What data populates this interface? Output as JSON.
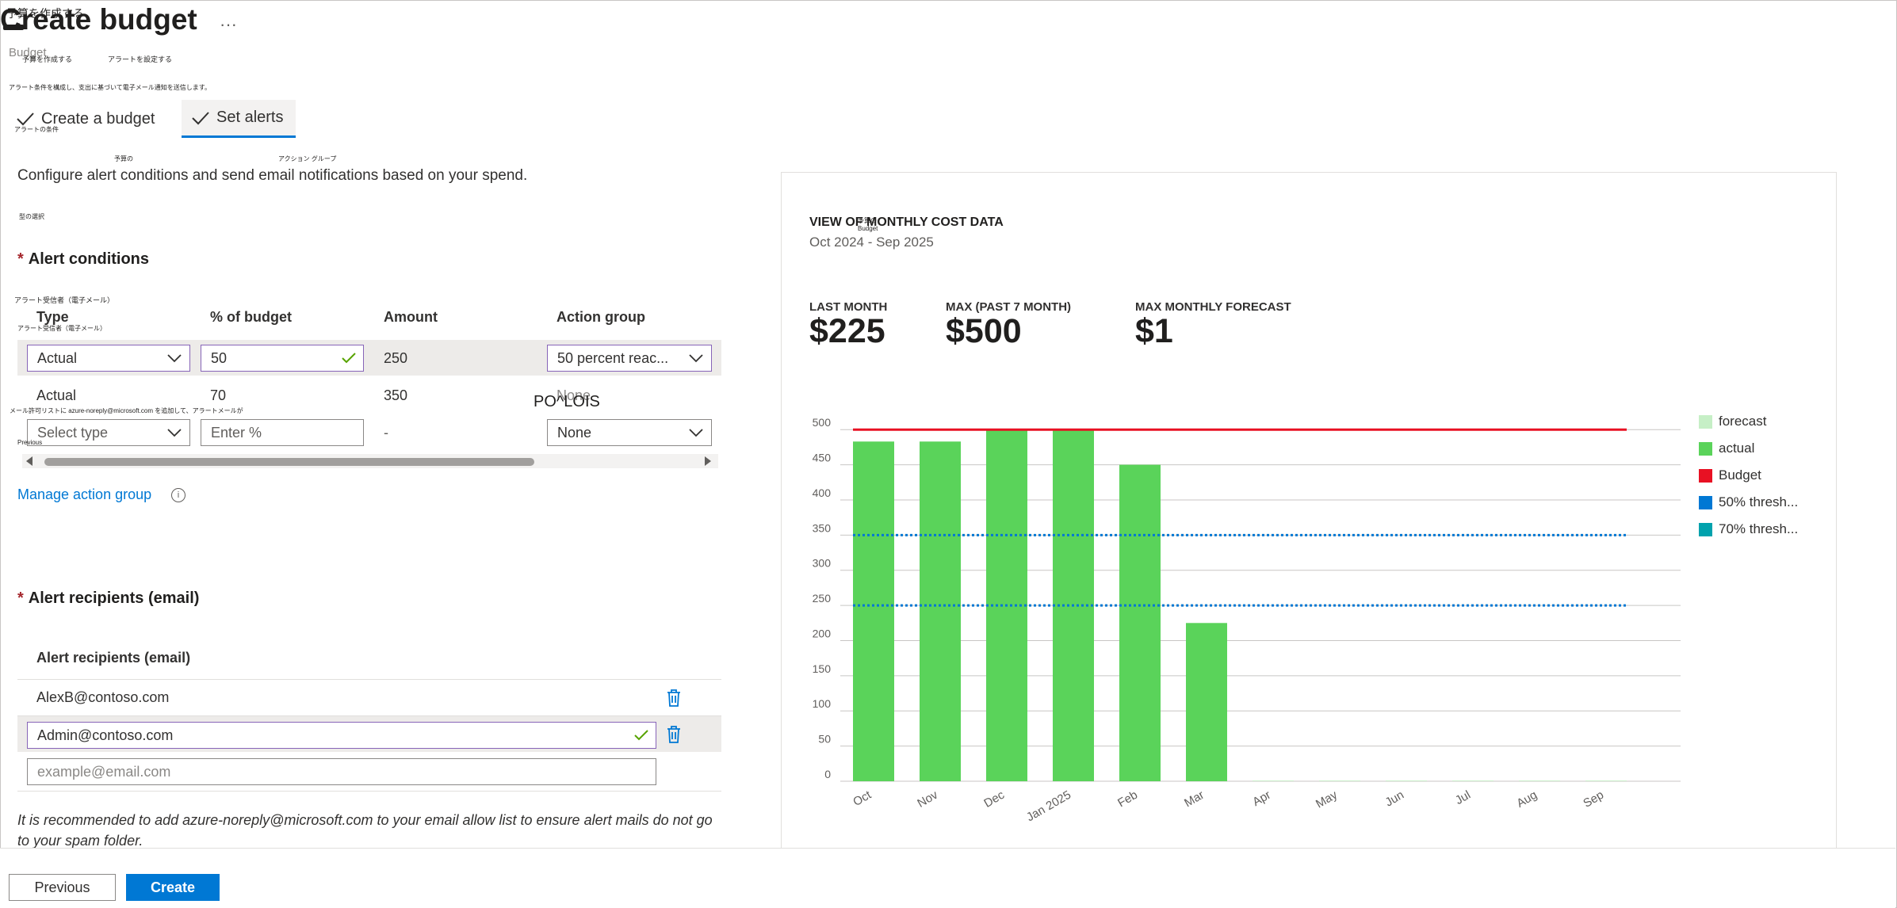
{
  "page": {
    "title": "Create budget",
    "title_overlay_jp": "予算を作成する",
    "ellipsis": "···",
    "breadcrumb_faded": "Budget",
    "tab_labels_jp": [
      "予算を作成する",
      "アラートを設定する"
    ],
    "desc_jp": "アラート条件を構成し、支出に基づいて電子メール通知を送信します。",
    "alert_conditions_jp": "アラートの条件",
    "col_jp": [
      "予算の",
      "アクション グループ"
    ],
    "type_select_jp": "型の選択",
    "recipients_jp": "アラート受信者（電子メール）",
    "recipients_header_jp": "アラート受信者（電子メール）",
    "allowlist_jp": "メール許可リストに azure-noreply@microsoft.com を追加して、アラートメールが",
    "prev_jp": "Previous"
  },
  "tabs": [
    {
      "label": "Create a budget",
      "done": true
    },
    {
      "label": "Set alerts",
      "done": true,
      "active": true
    }
  ],
  "description": "Configure alert conditions and send email notifications based on your spend.",
  "alert_conditions": {
    "heading": "Alert conditions",
    "required_mark": "*",
    "columns": [
      "Type",
      "% of budget",
      "Amount",
      "Action group"
    ],
    "rows": [
      {
        "type": "Actual",
        "percent": "50",
        "amount": "250",
        "action_group": "50 percent reac..."
      },
      {
        "type": "Actual",
        "percent": "70",
        "amount": "350",
        "action_group": "None"
      },
      {
        "type": "Select type",
        "percent": "Enter %",
        "amount": "-",
        "action_group": "None"
      }
    ],
    "overlay_text": "PO^LOIS",
    "manage_link": "Manage action group",
    "info_icon": "i"
  },
  "alert_recipients": {
    "heading": "Alert recipients (email)",
    "required_mark": "*",
    "column": "Alert recipients (email)",
    "emails": [
      "AlexB@contoso.com",
      "Admin@contoso.com"
    ],
    "placeholder": "example@email.com",
    "note": "It is recommended to add azure-noreply@microsoft.com to your email allow list to ensure alert mails do not go to your spam folder."
  },
  "footer": {
    "previous": "Previous",
    "create": "Create"
  },
  "panel": {
    "title": "VIEW OF MONTHLY COST DATA",
    "title_overlay": "予算の\nBudget",
    "subtitle": "Oct 2024 - Sep 2025",
    "kpis": [
      {
        "label": "LAST MONTH",
        "value": "$225"
      },
      {
        "label": "MAX (PAST 7 MONTH)",
        "value": "$500"
      },
      {
        "label": "MAX MONTHLY FORECAST",
        "value": "$1"
      }
    ]
  },
  "colors": {
    "actual": "#5ad35a",
    "forecast": "#c6efc6",
    "budget": "#e81123",
    "threshold50": "#0078d4",
    "threshold70": "#00a2ad",
    "accent": "#0078d4",
    "focus": "#8764b8"
  },
  "chart_data": {
    "type": "bar",
    "categories": [
      "Oct",
      "Nov",
      "Dec",
      "Jan 2025",
      "Feb",
      "Mar",
      "Apr",
      "May",
      "Jun",
      "Jul",
      "Aug",
      "Sep"
    ],
    "series": [
      {
        "name": "forecast",
        "values": [
          0,
          0,
          0,
          0,
          0,
          0,
          1,
          1,
          1,
          1,
          1,
          1
        ]
      },
      {
        "name": "actual",
        "values": [
          483,
          483,
          500,
          500,
          450,
          225,
          0,
          0,
          0,
          0,
          0,
          0
        ]
      },
      {
        "name": "Budget",
        "values": [
          500,
          500,
          500,
          500,
          500,
          500,
          500,
          500,
          500,
          500,
          500,
          500
        ]
      },
      {
        "name": "50% thresh...",
        "values": [
          250,
          250,
          250,
          250,
          250,
          250,
          250,
          250,
          250,
          250,
          250,
          250
        ]
      },
      {
        "name": "70% thresh...",
        "values": [
          350,
          350,
          350,
          350,
          350,
          350,
          350,
          350,
          350,
          350,
          350,
          350
        ]
      }
    ],
    "yticks": [
      0,
      50,
      100,
      150,
      200,
      250,
      300,
      350,
      400,
      450,
      500
    ],
    "ylim": [
      0,
      525
    ],
    "grid": true,
    "legend": "right"
  }
}
